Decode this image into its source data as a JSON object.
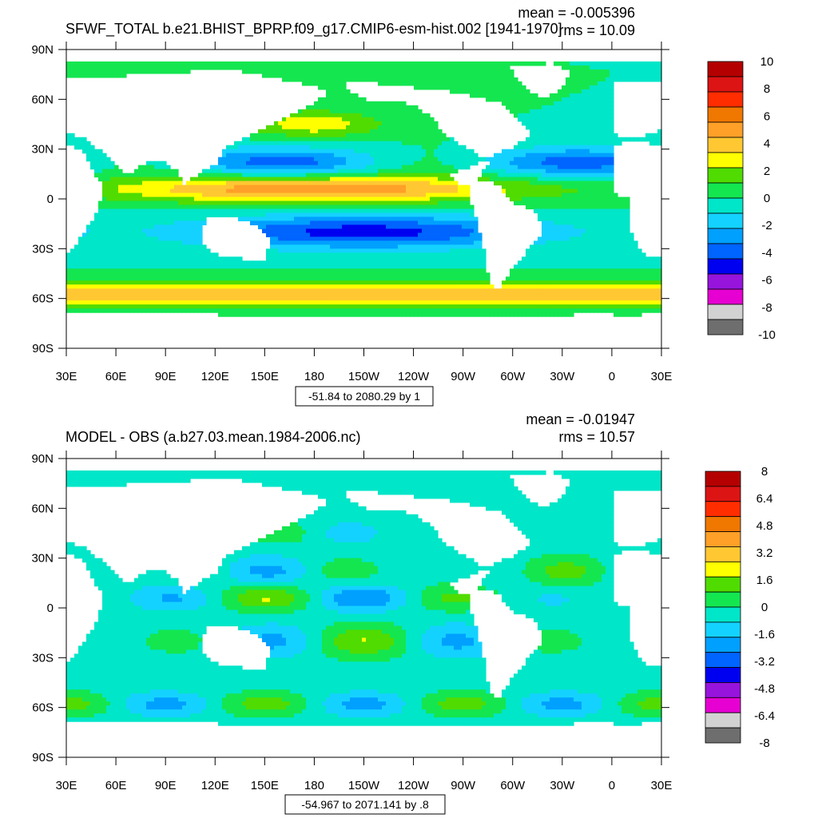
{
  "chart_data": [
    {
      "type": "heatmap",
      "title": "SFWF_TOTAL b.e21.BHIST_BPRP.f09_g17.CMIP6-esm-hist.002 [1941-1970]",
      "stat_mean": "mean = -0.005396",
      "stat_rms": "rms = 10.09",
      "range_note": "-51.84 to 2080.29 by 1",
      "x_ticks": [
        "30E",
        "60E",
        "90E",
        "120E",
        "150E",
        "180",
        "150W",
        "120W",
        "90W",
        "60W",
        "30W",
        "0",
        "30E"
      ],
      "y_ticks": [
        "90N",
        "60N",
        "30N",
        "0",
        "30S",
        "60S",
        "90S"
      ],
      "colorbar_labels": [
        "10",
        "8",
        "6",
        "4",
        "2",
        "0",
        "-2",
        "-4",
        "-6",
        "-8",
        "-10"
      ],
      "colors": [
        "#b40000",
        "#dc1414",
        "#ff2d00",
        "#f07800",
        "#ffa028",
        "#ffc832",
        "#ffff00",
        "#50dc00",
        "#14e650",
        "#00e6c8",
        "#14d2ff",
        "#00a0ff",
        "#0064ff",
        "#0000f0",
        "#9614dc",
        "#e600d2",
        "#d2d2d2",
        "#6e6e6e"
      ],
      "grid": false
    },
    {
      "type": "heatmap",
      "title": "MODEL - OBS (a.b27.03.mean.1984-2006.nc)",
      "stat_mean": "mean = -0.01947",
      "stat_rms": "rms = 10.57",
      "range_note": "-54.967 to 2071.141 by .8",
      "x_ticks": [
        "30E",
        "60E",
        "90E",
        "120E",
        "150E",
        "180",
        "150W",
        "120W",
        "90W",
        "60W",
        "30W",
        "0",
        "30E"
      ],
      "y_ticks": [
        "90N",
        "60N",
        "30N",
        "0",
        "30S",
        "60S",
        "90S"
      ],
      "colorbar_labels": [
        "8",
        "6.4",
        "4.8",
        "3.2",
        "1.6",
        "0",
        "-1.6",
        "-3.2",
        "-4.8",
        "-6.4",
        "-8"
      ],
      "colors": [
        "#b40000",
        "#dc1414",
        "#ff2d00",
        "#f07800",
        "#ffa028",
        "#ffc832",
        "#ffff00",
        "#50dc00",
        "#14e650",
        "#00e6c8",
        "#14d2ff",
        "#00a0ff",
        "#0064ff",
        "#0000f0",
        "#9614dc",
        "#e600d2",
        "#d2d2d2",
        "#6e6e6e"
      ],
      "grid": false
    }
  ]
}
